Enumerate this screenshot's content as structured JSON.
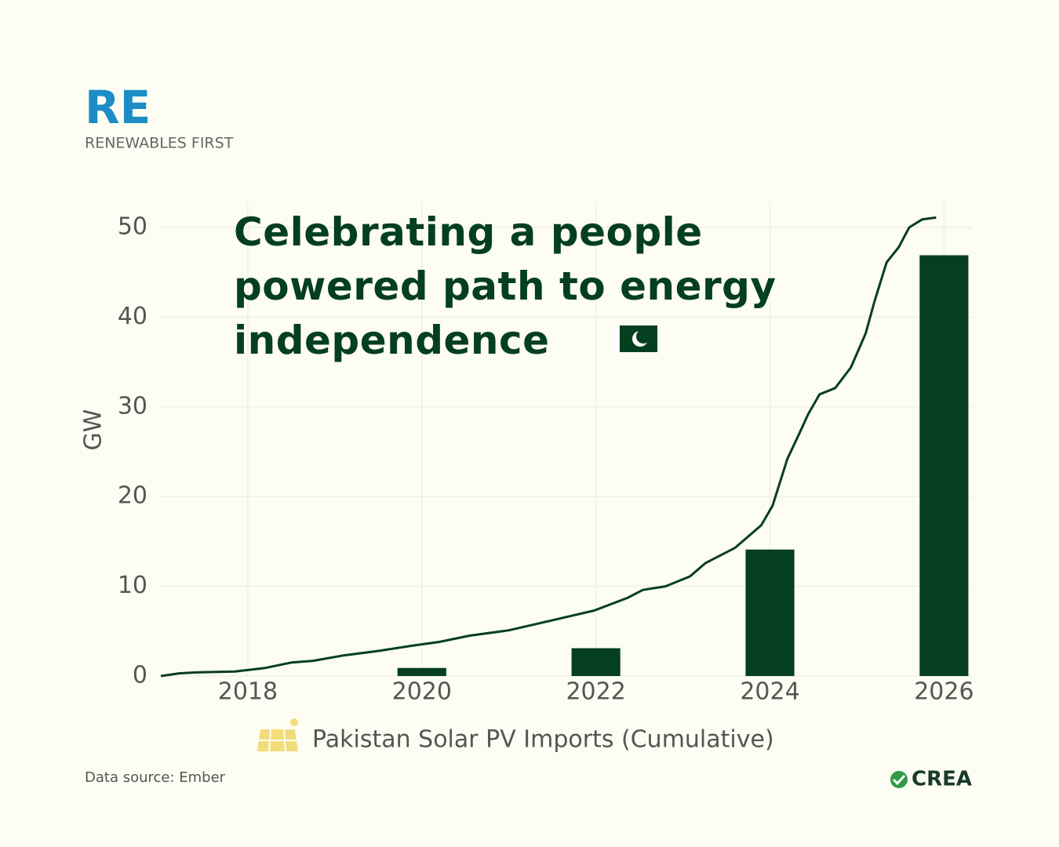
{
  "chart_data": {
    "type": "line",
    "title": "Celebrating a people powered path to energy independence",
    "y_label": "GW",
    "series": [
      {
        "name": "Pakistan Solar PV Imports (Cumulative)",
        "color": "#043f1f",
        "x": [
          2017.0,
          2017.21,
          2017.4,
          2017.85,
          2018.2,
          2018.5,
          2018.75,
          2019.1,
          2019.5,
          2019.9,
          2020.2,
          2020.55,
          2021.0,
          2021.45,
          2021.98,
          2022.36,
          2022.54,
          2022.8,
          2023.08,
          2023.26,
          2023.6,
          2023.9,
          2024.03,
          2024.2,
          2024.35,
          2024.44,
          2024.57,
          2024.75,
          2024.93,
          2025.1,
          2025.2,
          2025.34,
          2025.48,
          2025.6,
          2025.75,
          2025.91
        ],
        "values": [
          0,
          0.3,
          0.4,
          0.5,
          0.9,
          1.5,
          1.7,
          2.3,
          2.8,
          3.4,
          3.8,
          4.5,
          5.1,
          6.1,
          7.3,
          8.7,
          9.6,
          10.0,
          11.1,
          12.6,
          14.3,
          16.8,
          19.0,
          24.2,
          27.3,
          29.2,
          31.4,
          32.1,
          34.4,
          38.2,
          41.7,
          46.1,
          47.8,
          50.0,
          50.9,
          51.1
        ]
      }
    ],
    "bars": {
      "type": "bar",
      "x": [
        2020,
        2022,
        2024,
        2026
      ],
      "values": [
        0.9,
        3.1,
        14.1,
        46.9
      ],
      "color": "#043f1f"
    },
    "xlim": [
      2017,
      2026.33
    ],
    "xticks": [
      2018,
      2020,
      2022,
      2024,
      2026
    ],
    "ylim": [
      0,
      52.8
    ],
    "yticks": [
      0,
      10,
      20,
      30,
      40,
      50
    ],
    "grid": true
  },
  "logo": {
    "mark": "RE",
    "name": "RENEWABLES FIRST"
  },
  "source": "Data source: Ember",
  "brand": "CREA"
}
